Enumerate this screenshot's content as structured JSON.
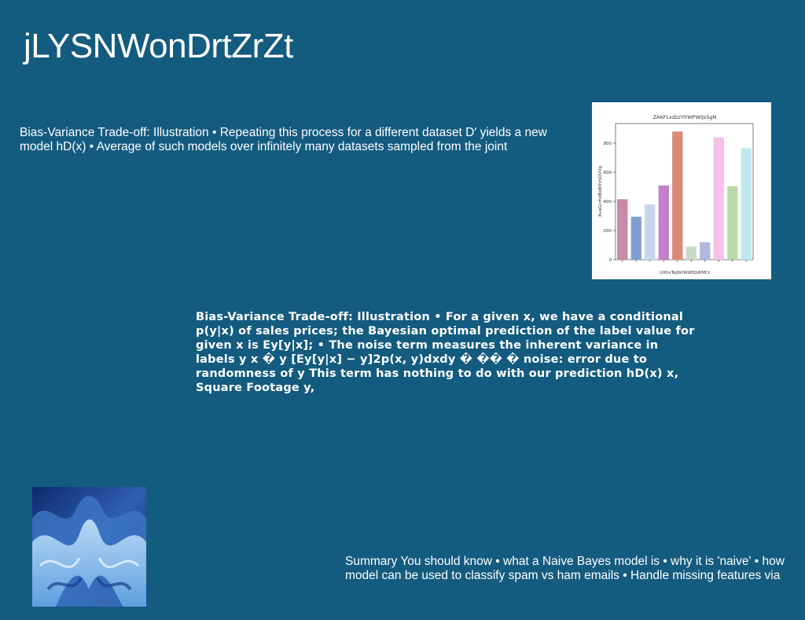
{
  "title": "jLYSNWonDrtZrZt",
  "paragraph_1": "Bias-Variance Trade-off: Illustration • Repeating this process for a different dataset D′ yields a new model hD(x) • Average of such models over infinitely many datasets sampled from the joint",
  "paragraph_2": "Bias-Variance Trade-off: Illustration • For a given x, we have a conditional p(y|x) of sales prices; the Bayesian optimal prediction of the label value for given x is Ey[y|x]; • The noise term measures the inherent variance in labels y x � y [Ey[y|x] − y]2p(x, y)dxdy � �� � noise: error due to randomness of y This term has nothing to do with our prediction hD(x) x, Square Footage y,",
  "paragraph_3": "Summary You should know • what a Naive Bayes model is • why it is 'naive' • how model can be used to classify spam vs ham emails • Handle missing features via",
  "chart": {
    "type": "bar",
    "title": "ZAKFLxdzzYltWPWIJsSgN",
    "x_label": "UXhvTeJlbiIWdHQdtMCt",
    "y_label": "KvaGcrhdBoBlYzSOVVg",
    "categories": [
      null,
      null,
      null,
      null,
      null,
      null,
      null,
      null,
      null,
      null
    ],
    "values": [
      415,
      295,
      380,
      510,
      880,
      90,
      120,
      840,
      505,
      765
    ],
    "colors": [
      "#c98aa6",
      "#7f9fd2",
      "#c8d5ee",
      "#c47fc8",
      "#d98b78",
      "#c9dacb",
      "#b3b6de",
      "#f9bfe8",
      "#badba5",
      "#bfe9ee"
    ],
    "ylim": [
      0,
      935
    ],
    "yticks": [
      0,
      200,
      400,
      600,
      800
    ]
  }
}
